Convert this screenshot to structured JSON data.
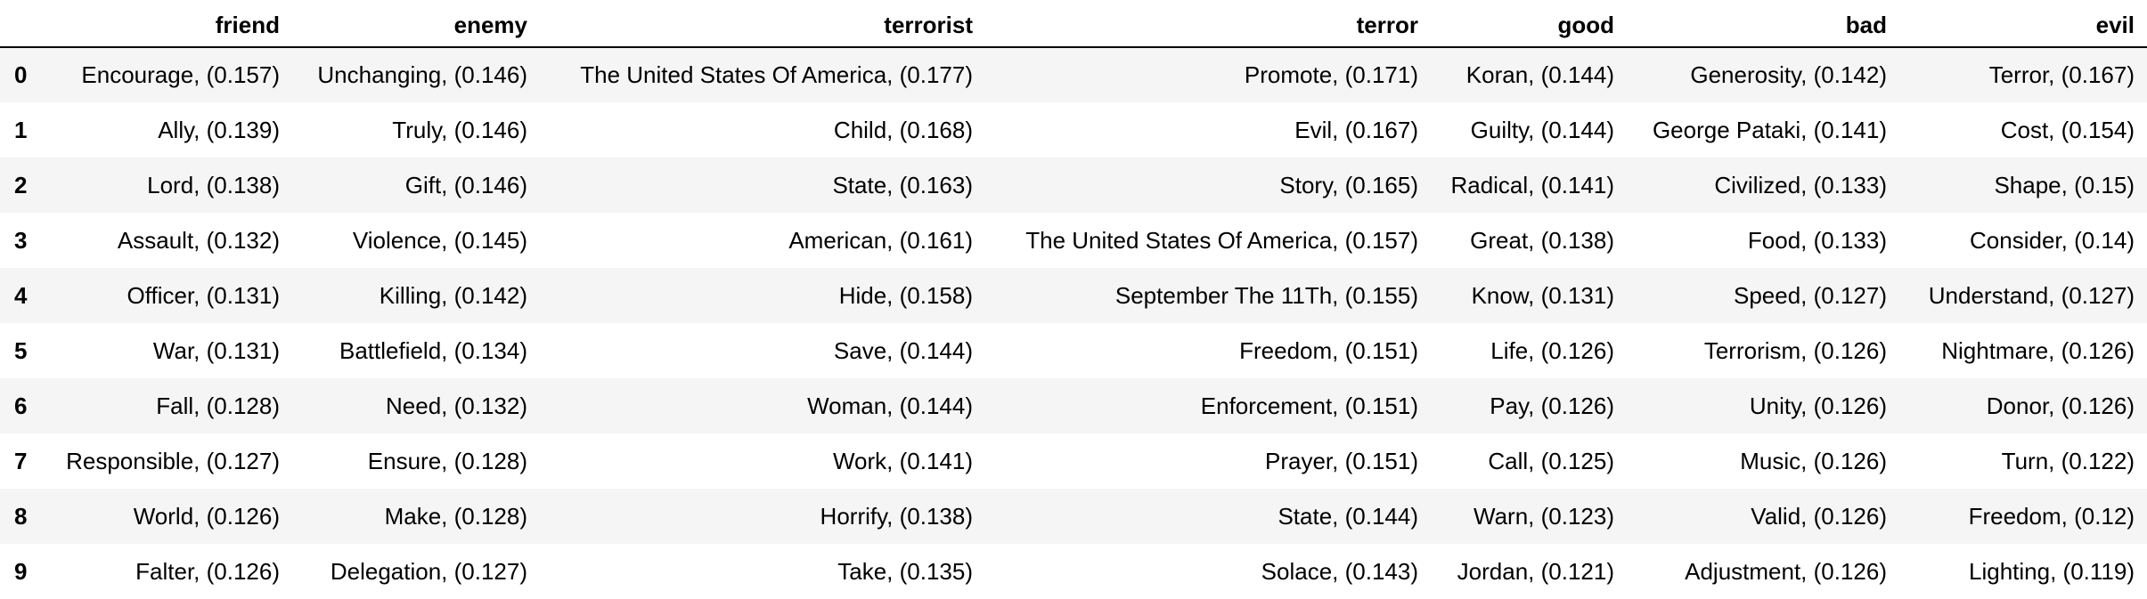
{
  "table": {
    "index_header": "",
    "columns": [
      "friend",
      "enemy",
      "terrorist",
      "terror",
      "good",
      "bad",
      "evil"
    ],
    "rows": [
      {
        "index": "0",
        "cells": [
          "Encourage, (0.157)",
          "Unchanging, (0.146)",
          "The United States Of America, (0.177)",
          "Promote, (0.171)",
          "Koran, (0.144)",
          "Generosity, (0.142)",
          "Terror, (0.167)"
        ]
      },
      {
        "index": "1",
        "cells": [
          "Ally, (0.139)",
          "Truly, (0.146)",
          "Child, (0.168)",
          "Evil, (0.167)",
          "Guilty, (0.144)",
          "George Pataki, (0.141)",
          "Cost, (0.154)"
        ]
      },
      {
        "index": "2",
        "cells": [
          "Lord, (0.138)",
          "Gift, (0.146)",
          "State, (0.163)",
          "Story, (0.165)",
          "Radical, (0.141)",
          "Civilized, (0.133)",
          "Shape, (0.15)"
        ]
      },
      {
        "index": "3",
        "cells": [
          "Assault, (0.132)",
          "Violence, (0.145)",
          "American, (0.161)",
          "The United States Of America, (0.157)",
          "Great, (0.138)",
          "Food, (0.133)",
          "Consider, (0.14)"
        ]
      },
      {
        "index": "4",
        "cells": [
          "Officer, (0.131)",
          "Killing, (0.142)",
          "Hide, (0.158)",
          "September The 11Th, (0.155)",
          "Know, (0.131)",
          "Speed, (0.127)",
          "Understand, (0.127)"
        ]
      },
      {
        "index": "5",
        "cells": [
          "War, (0.131)",
          "Battlefield, (0.134)",
          "Save, (0.144)",
          "Freedom, (0.151)",
          "Life, (0.126)",
          "Terrorism, (0.126)",
          "Nightmare, (0.126)"
        ]
      },
      {
        "index": "6",
        "cells": [
          "Fall, (0.128)",
          "Need, (0.132)",
          "Woman, (0.144)",
          "Enforcement, (0.151)",
          "Pay, (0.126)",
          "Unity, (0.126)",
          "Donor, (0.126)"
        ]
      },
      {
        "index": "7",
        "cells": [
          "Responsible, (0.127)",
          "Ensure, (0.128)",
          "Work, (0.141)",
          "Prayer, (0.151)",
          "Call, (0.125)",
          "Music, (0.126)",
          "Turn, (0.122)"
        ]
      },
      {
        "index": "8",
        "cells": [
          "World, (0.126)",
          "Make, (0.128)",
          "Horrify, (0.138)",
          "State, (0.144)",
          "Warn, (0.123)",
          "Valid, (0.126)",
          "Freedom, (0.12)"
        ]
      },
      {
        "index": "9",
        "cells": [
          "Falter, (0.126)",
          "Delegation, (0.127)",
          "Take, (0.135)",
          "Solace, (0.143)",
          "Jordan, (0.121)",
          "Adjustment, (0.126)",
          "Lighting, (0.119)"
        ]
      }
    ]
  }
}
